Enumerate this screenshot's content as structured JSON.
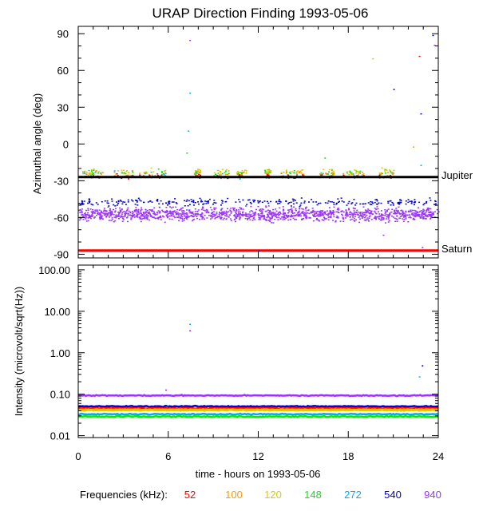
{
  "chart_data": [
    {
      "type": "scatter",
      "title": "URAP Direction Finding  1993-05-06",
      "ylabel": "Azimuthal angle (deg)",
      "xlim": [
        0,
        24
      ],
      "ylim": [
        -93,
        96
      ],
      "yticks": [
        90,
        60,
        30,
        0,
        -30,
        -60,
        -90
      ],
      "ytick_labels": [
        "90",
        "60",
        "30",
        "0",
        "-30",
        "-60",
        "-90"
      ],
      "reference_lines": [
        {
          "name": "Jupiter",
          "y": -27,
          "color": "#000000"
        },
        {
          "name": "Saturn",
          "y": -87,
          "color": "#ff0000"
        }
      ],
      "series": [
        {
          "name": "940",
          "color": "#9933ff",
          "y_center": -57,
          "y_spread": 5,
          "points": [
            [
              7.4,
              85
            ],
            [
              23.7,
              81
            ],
            [
              22.9,
              -84
            ],
            [
              20.3,
              -74
            ]
          ]
        },
        {
          "name": "540",
          "color": "#0000cc",
          "y_center": -47,
          "y_spread": 3,
          "points": [
            [
              23.6,
              89
            ],
            [
              21,
              45
            ],
            [
              22.8,
              25
            ],
            [
              12,
              -87
            ]
          ]
        },
        {
          "name": "272",
          "color": "#00aaff",
          "y_center": -25,
          "y_spread": 3,
          "points": [
            [
              7.4,
              42
            ],
            [
              7.3,
              11
            ],
            [
              22.8,
              -17
            ]
          ]
        },
        {
          "name": "148",
          "color": "#00ee00",
          "y_center": -23,
          "y_spread": 3,
          "points": [
            [
              7.2,
              -7
            ],
            [
              16.4,
              -11
            ]
          ]
        },
        {
          "name": "120",
          "color": "#ddcc00",
          "y_center": -22,
          "y_spread": 3,
          "points": [
            [
              19.6,
              70
            ]
          ]
        },
        {
          "name": "100",
          "color": "#ff9900",
          "y_center": -24,
          "y_spread": 3,
          "points": [
            [
              22.3,
              -2
            ]
          ]
        },
        {
          "name": "52",
          "color": "#ff0000",
          "y_center": -26,
          "y_spread": 2,
          "points": [
            [
              22.7,
              72
            ]
          ]
        }
      ]
    },
    {
      "type": "scatter",
      "ylabel": "Intensity (microvolt/sqrt(Hz))",
      "xlabel": "time - hours on 1993-05-06",
      "y_scale": "log",
      "xlim": [
        0,
        24
      ],
      "ylim": [
        0.009,
        130
      ],
      "xticks": [
        0,
        6,
        12,
        18,
        24
      ],
      "xtick_labels": [
        "0",
        "6",
        "12",
        "18",
        "24"
      ],
      "yticks": [
        100,
        10,
        1,
        0.1,
        0.01
      ],
      "ytick_labels": [
        "100.00",
        "10.00",
        "1.00",
        "0.10",
        "0.01"
      ],
      "series": [
        {
          "name": "940",
          "color": "#9933ff",
          "level": 0.093
        },
        {
          "name": "540",
          "color": "#0000cc",
          "level": 0.051
        },
        {
          "name": "52",
          "color": "#ff0000",
          "level": 0.046
        },
        {
          "name": "100",
          "color": "#ff9900",
          "level": 0.043
        },
        {
          "name": "120",
          "color": "#ddcc00",
          "level": 0.041
        },
        {
          "name": "272",
          "color": "#00aaff",
          "level": 0.033
        },
        {
          "name": "148",
          "color": "#00ee00",
          "level": 0.029
        }
      ],
      "outliers": [
        {
          "series": "272",
          "x": 7.4,
          "y": 5.0
        },
        {
          "series": "940",
          "x": 7.4,
          "y": 3.5
        },
        {
          "series": "540",
          "x": 22.9,
          "y": 0.5
        },
        {
          "series": "272",
          "x": 22.7,
          "y": 0.27
        },
        {
          "series": "940",
          "x": 5.8,
          "y": 0.13
        },
        {
          "series": "272",
          "x": 5.9,
          "y": 0.055
        }
      ]
    }
  ],
  "legend": {
    "label": "Frequencies (kHz):",
    "items": [
      {
        "text": "52",
        "color": "#ff0000"
      },
      {
        "text": "100",
        "color": "#ff9900"
      },
      {
        "text": "120",
        "color": "#ddcc00"
      },
      {
        "text": "148",
        "color": "#00ee00"
      },
      {
        "text": "272",
        "color": "#00aaff"
      },
      {
        "text": "540",
        "color": "#0000cc"
      },
      {
        "text": "940",
        "color": "#9933ff"
      }
    ]
  }
}
